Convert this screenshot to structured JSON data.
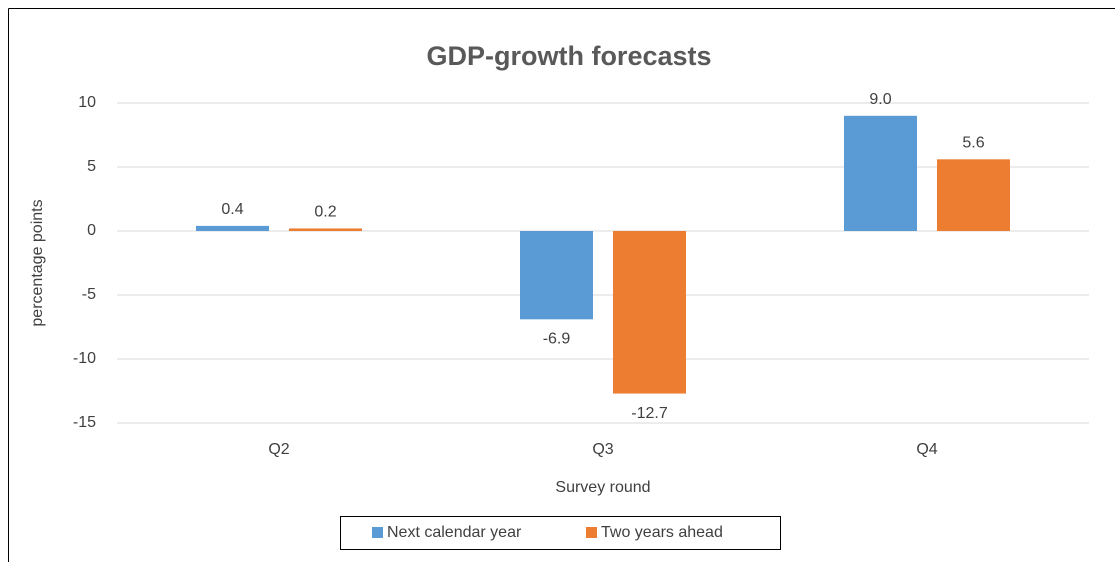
{
  "chart_data": {
    "type": "bar",
    "title": "GDP-growth forecasts",
    "x_label": "Survey round",
    "y_label": "percentage points",
    "categories": [
      "Q2",
      "Q3",
      "Q4"
    ],
    "series": [
      {
        "name": "Next calendar year",
        "color": "#5b9bd5",
        "values": [
          0.4,
          -6.9,
          9.0
        ],
        "value_labels": [
          "0.4",
          "-6.9",
          "9.0"
        ]
      },
      {
        "name": "Two years ahead",
        "color": "#ed7d31",
        "values": [
          0.2,
          -12.7,
          5.6
        ],
        "value_labels": [
          "0.2",
          "-12.7",
          "5.6"
        ]
      }
    ],
    "ylim": [
      -15,
      10
    ],
    "yticks": [
      -15,
      -10,
      -5,
      0,
      5,
      10
    ],
    "grid": true,
    "legend": "bottom"
  }
}
